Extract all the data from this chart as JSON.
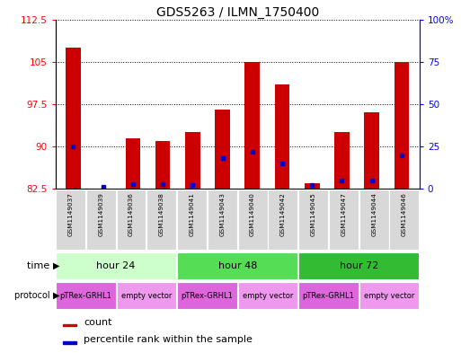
{
  "title": "GDS5263 / ILMN_1750400",
  "samples": [
    "GSM1149037",
    "GSM1149039",
    "GSM1149036",
    "GSM1149038",
    "GSM1149041",
    "GSM1149043",
    "GSM1149040",
    "GSM1149042",
    "GSM1149045",
    "GSM1149047",
    "GSM1149044",
    "GSM1149046"
  ],
  "count_values": [
    107.5,
    82.6,
    91.5,
    91.0,
    92.5,
    96.5,
    105.0,
    101.0,
    83.5,
    92.5,
    96.0,
    105.0
  ],
  "percentile_values": [
    25,
    1,
    3,
    3,
    2,
    18,
    22,
    15,
    2,
    5,
    5,
    20
  ],
  "ylim_left": [
    82.5,
    112.5
  ],
  "ylim_right": [
    0,
    100
  ],
  "yticks_left": [
    82.5,
    90,
    97.5,
    105,
    112.5
  ],
  "yticks_right": [
    0,
    25,
    50,
    75,
    100
  ],
  "ytick_labels_right": [
    "0",
    "25",
    "50",
    "75",
    "100%"
  ],
  "bar_color": "#cc0000",
  "dot_color": "#0000cc",
  "time_groups": [
    {
      "label": "hour 24",
      "start": 0,
      "end": 4,
      "color": "#ccffcc"
    },
    {
      "label": "hour 48",
      "start": 4,
      "end": 8,
      "color": "#55dd55"
    },
    {
      "label": "hour 72",
      "start": 8,
      "end": 12,
      "color": "#33bb33"
    }
  ],
  "protocol_groups": [
    {
      "label": "pTRex-GRHL1",
      "start": 0,
      "end": 2,
      "color": "#dd66dd"
    },
    {
      "label": "empty vector",
      "start": 2,
      "end": 4,
      "color": "#ee99ee"
    },
    {
      "label": "pTRex-GRHL1",
      "start": 4,
      "end": 6,
      "color": "#dd66dd"
    },
    {
      "label": "empty vector",
      "start": 6,
      "end": 8,
      "color": "#ee99ee"
    },
    {
      "label": "pTRex-GRHL1",
      "start": 8,
      "end": 10,
      "color": "#dd66dd"
    },
    {
      "label": "empty vector",
      "start": 10,
      "end": 12,
      "color": "#ee99ee"
    }
  ],
  "background_color": "#ffffff",
  "bar_width": 0.5
}
